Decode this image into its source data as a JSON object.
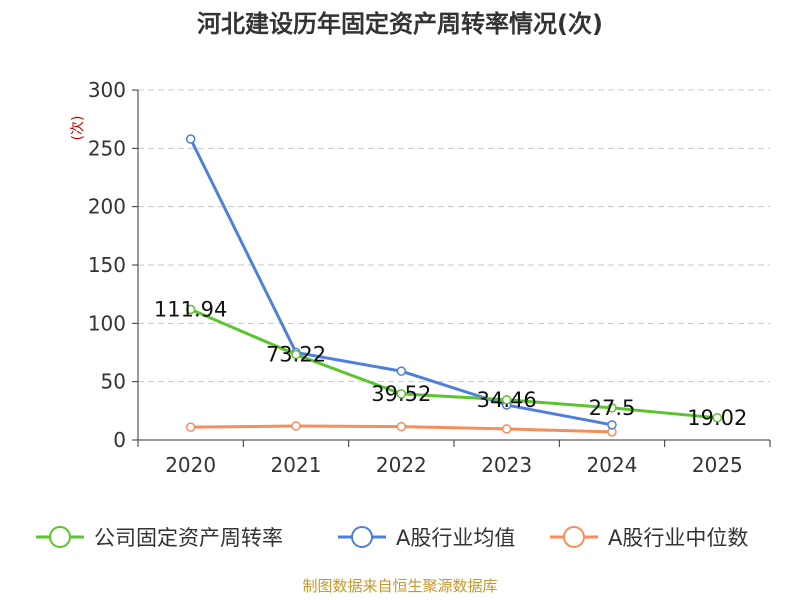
{
  "chart_data": {
    "type": "line",
    "title": "河北建设历年固定资产周转率情况(次)",
    "ylabel": "(次)",
    "xlabel": "",
    "categories": [
      "2020",
      "2021",
      "2022",
      "2023",
      "2024",
      "2025"
    ],
    "ylim": [
      0,
      300
    ],
    "yticks": [
      0,
      50,
      100,
      150,
      200,
      250,
      300
    ],
    "grid": true,
    "legend_position": "bottom",
    "series": [
      {
        "name": "公司固定资产周转率",
        "color": "#5cc42c",
        "values": [
          111.94,
          73.22,
          39.52,
          34.46,
          27.5,
          19.02
        ],
        "labels": [
          "111.94",
          "73.22",
          "39.52",
          "34.46",
          "27.5",
          "19.02"
        ]
      },
      {
        "name": "A股行业均值",
        "color": "#4f7fdc",
        "values": [
          258,
          75,
          59,
          30,
          13,
          null
        ]
      },
      {
        "name": "A股行业中位数",
        "color": "#f58e5b",
        "values": [
          11,
          12,
          11.5,
          9.5,
          7,
          null
        ]
      }
    ]
  },
  "source": "制图数据来自恒生聚源数据库"
}
